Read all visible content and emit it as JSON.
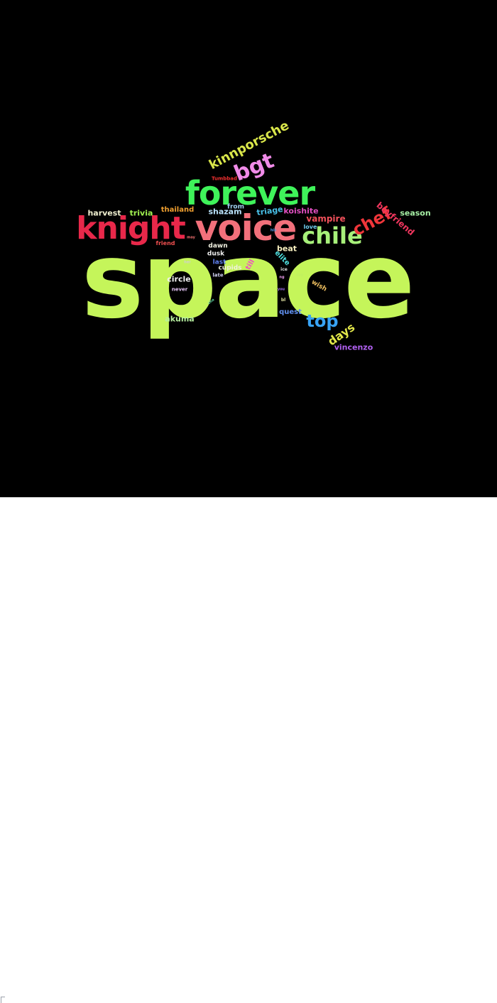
{
  "words": [
    {
      "text": "space",
      "color": "#c5f55a"
    },
    {
      "text": "forever",
      "color": "#3ff35a"
    },
    {
      "text": "voice",
      "color": "#f2707b"
    },
    {
      "text": "knight",
      "color": "#e8284a"
    },
    {
      "text": "chile",
      "color": "#a7f07a"
    },
    {
      "text": "bgt",
      "color": "#f08be8"
    },
    {
      "text": "kinnporsche",
      "color": "#d9e64a"
    },
    {
      "text": "chef",
      "color": "#f0363a"
    },
    {
      "text": "top",
      "color": "#38a3f5"
    },
    {
      "text": "days",
      "color": "#e3e84a"
    },
    {
      "text": "boyfriend",
      "color": "#f0365e"
    },
    {
      "text": "season",
      "color": "#a7f0a5"
    },
    {
      "text": "vampire",
      "color": "#f0505a"
    },
    {
      "text": "koishite",
      "color": "#e04fc0"
    },
    {
      "text": "triage",
      "color": "#48c0e8"
    },
    {
      "text": "shazam",
      "color": "#b8e0f8"
    },
    {
      "text": "thailand",
      "color": "#f0a030"
    },
    {
      "text": "trivia",
      "color": "#a0f050"
    },
    {
      "text": "harvest",
      "color": "#f0f0d0"
    },
    {
      "text": "beat",
      "color": "#f8f0c0"
    },
    {
      "text": "circle",
      "color": "#f0f0f0"
    },
    {
      "text": "akuma",
      "color": "#b8f0a0"
    },
    {
      "text": "quest",
      "color": "#6090f0"
    },
    {
      "text": "vincenzo",
      "color": "#b060f0"
    },
    {
      "text": "wish",
      "color": "#f0c060"
    },
    {
      "text": "elite",
      "color": "#50e0e0"
    },
    {
      "text": "till",
      "color": "#f050c0"
    },
    {
      "text": "cupids",
      "color": "#f0f0e0"
    },
    {
      "text": "last",
      "color": "#6080f0"
    },
    {
      "text": "dusk",
      "color": "#f0f0f0"
    },
    {
      "text": "dawn",
      "color": "#f0f0e0"
    },
    {
      "text": "from",
      "color": "#a0d0f0"
    },
    {
      "text": "late",
      "color": "#d0d0f0"
    },
    {
      "text": "love",
      "color": "#70d0f0"
    },
    {
      "text": "friend",
      "color": "#f05050"
    },
    {
      "text": "never",
      "color": "#e0c0f0"
    },
    {
      "text": "Tumbbad",
      "color": "#f03030"
    },
    {
      "text": "ice",
      "color": "#e0e0e0"
    },
    {
      "text": "bl",
      "color": "#e0e0a0"
    },
    {
      "text": "cha",
      "color": "#60d0a0"
    },
    {
      "text": "ng",
      "color": "#f0a0f0"
    },
    {
      "text": "her",
      "color": "#d0d0d0"
    },
    {
      "text": "his",
      "color": "#50a0f0"
    },
    {
      "text": "may",
      "color": "#f07070"
    },
    {
      "text": "day",
      "color": "#c0f060"
    },
    {
      "text": "you",
      "color": "#a070f0"
    }
  ]
}
